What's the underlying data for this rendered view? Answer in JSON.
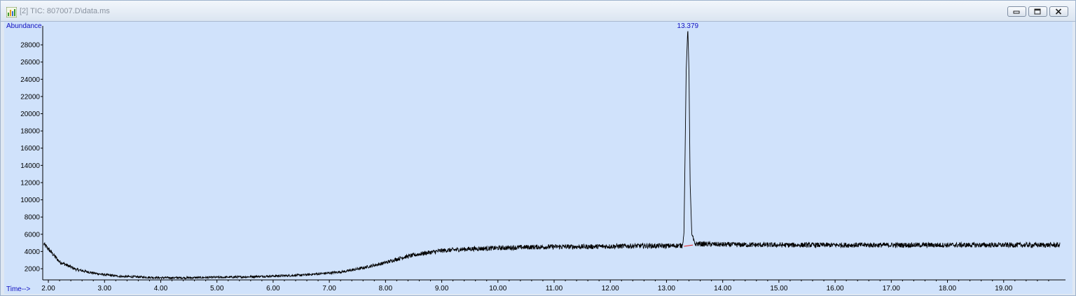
{
  "window": {
    "title": "[2] TIC: 807007.D\\data.ms",
    "icons": {
      "app": "spectrum-app-icon",
      "minimize": "minimize-icon",
      "maximize": "restore-icon",
      "close": "close-icon"
    }
  },
  "colors": {
    "plot_background": "#d0e2fb",
    "trace": "#000000",
    "label_text": "#1010c0",
    "baseline_marker": "#e02020"
  },
  "chart_data": {
    "type": "line",
    "ylabel": "Abundance",
    "xlabel": "Time-->",
    "xlim": [
      1.9,
      20.1
    ],
    "ylim": [
      700,
      30200
    ],
    "yticks": [
      2000,
      4000,
      6000,
      8000,
      10000,
      12000,
      14000,
      16000,
      18000,
      20000,
      22000,
      24000,
      26000,
      28000
    ],
    "ytick_labels": [
      "2000",
      "4000",
      "6000",
      "8000",
      "10000",
      "12000",
      "14000",
      "16000",
      "18000",
      "20000",
      "22000",
      "24000",
      "26000",
      "28000"
    ],
    "xticks": [
      2,
      3,
      4,
      5,
      6,
      7,
      8,
      9,
      10,
      11,
      12,
      13,
      14,
      15,
      16,
      17,
      18,
      19
    ],
    "xtick_labels": [
      "2.00",
      "3.00",
      "4.00",
      "5.00",
      "6.00",
      "7.00",
      "8.00",
      "9.00",
      "10.00",
      "11.00",
      "12.00",
      "13.00",
      "14.00",
      "15.00",
      "16.00",
      "17.00",
      "18.00",
      "19.00"
    ],
    "series": [
      {
        "x": [
          1.9,
          2.0,
          2.2,
          2.5,
          2.8,
          3.0,
          3.3,
          3.6,
          4.0,
          4.5,
          5.0,
          5.5,
          6.0,
          6.5,
          7.0,
          7.3,
          7.6,
          8.0,
          8.3,
          8.6,
          9.0,
          9.5,
          10.0,
          10.5,
          11.0,
          11.5,
          12.0,
          12.5,
          13.0,
          13.28,
          13.31,
          13.33,
          13.35,
          13.379,
          13.4,
          13.42,
          13.45,
          13.5,
          14.0,
          15.0,
          16.0,
          17.0,
          18.0,
          19.0,
          20.0
        ],
        "y": [
          5000,
          4300,
          2800,
          1900,
          1500,
          1300,
          1100,
          1050,
          950,
          950,
          1000,
          1050,
          1150,
          1250,
          1500,
          1700,
          2100,
          2700,
          3300,
          3700,
          4100,
          4300,
          4400,
          4500,
          4550,
          4550,
          4600,
          4650,
          4650,
          4700,
          6000,
          15000,
          25000,
          30000,
          25000,
          12000,
          6000,
          4900,
          4800,
          4750,
          4750,
          4750,
          4750,
          4750,
          4750
        ]
      }
    ],
    "peak_label": {
      "x": 13.379,
      "text": "13.379"
    },
    "baseline_segment": {
      "x": [
        13.31,
        13.47
      ],
      "y": [
        4600,
        4750
      ]
    },
    "grid": false
  }
}
